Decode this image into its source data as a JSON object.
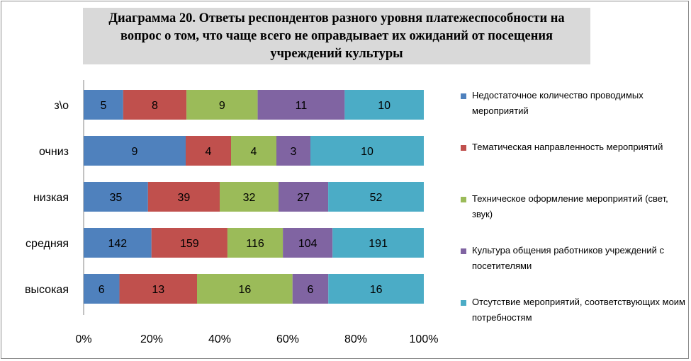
{
  "chart_data": {
    "type": "bar",
    "orientation": "horizontal",
    "stacked": "percent",
    "title": "Диаграмма 20. Ответы респондентов разного уровня платежеспособности на вопрос о том, что чаще всего не оправдывает их ожиданий от посещения учреждений культуры",
    "categories": [
      "з\\о",
      "очниз",
      "низкая",
      "средняя",
      "высокая"
    ],
    "series": [
      {
        "name": "Недостаточное количество проводимых мероприятий",
        "color": "#4f81bd",
        "values": [
          5,
          9,
          35,
          142,
          6
        ]
      },
      {
        "name": "Тематическая направленность мероприятий",
        "color": "#c0504d",
        "values": [
          8,
          4,
          39,
          159,
          13
        ]
      },
      {
        "name": "Техническое оформление мероприятий (свет, звук)",
        "color": "#9bbb59",
        "values": [
          9,
          4,
          32,
          116,
          16
        ]
      },
      {
        "name": "Культура общения работников учреждений  с посетителями",
        "color": "#8064a2",
        "values": [
          11,
          3,
          27,
          104,
          6
        ]
      },
      {
        "name": "Отсутствие мероприятий, соответствующих моим потребностям",
        "color": "#4bacc6",
        "values": [
          10,
          10,
          52,
          191,
          16
        ]
      }
    ],
    "xticks": [
      "0%",
      "20%",
      "40%",
      "60%",
      "80%",
      "100%"
    ],
    "xlim": [
      0,
      100
    ],
    "grid": false,
    "legend_position": "right"
  }
}
